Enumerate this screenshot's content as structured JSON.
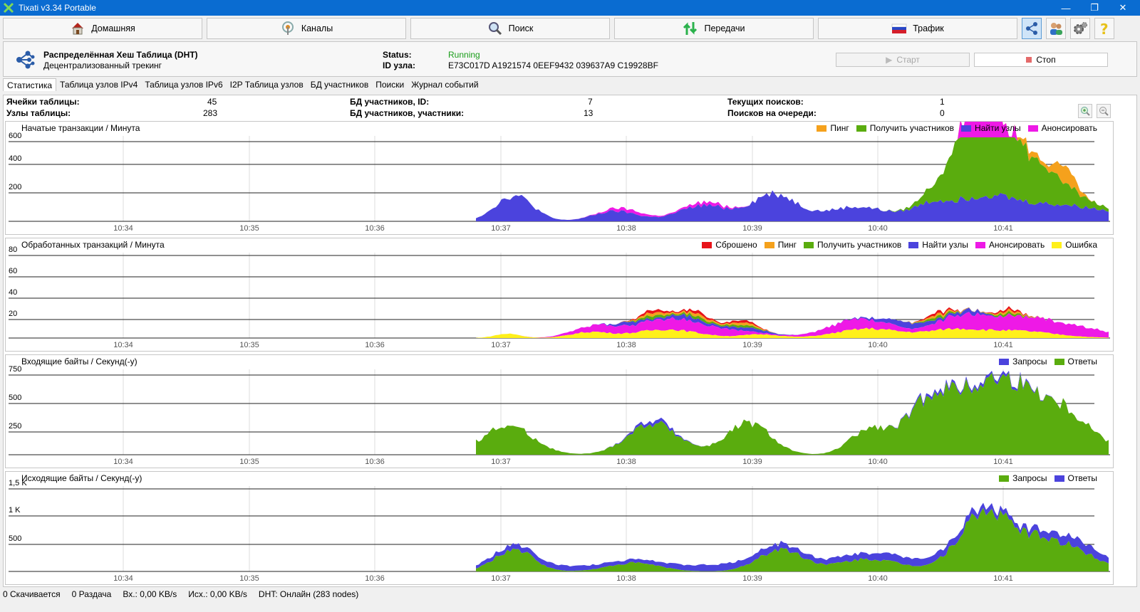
{
  "window": {
    "title": "Tixati v3.34 Portable"
  },
  "main_tabs": [
    {
      "label": "Домашняя",
      "icon": "home-icon"
    },
    {
      "label": "Каналы",
      "icon": "channels-icon"
    },
    {
      "label": "Поиск",
      "icon": "search-icon"
    },
    {
      "label": "Передачи",
      "icon": "transfers-icon"
    },
    {
      "label": "Трафик",
      "icon": "traffic-icon"
    }
  ],
  "dht": {
    "title": "Распределённая Хеш Таблица (DHT)",
    "subtitle": "Децентрализованный трекинг",
    "status_label": "Status:",
    "status_value": "Running",
    "id_label": "ID узла:",
    "id_value": "E73C017D A1921574 0EEF9432 039637A9 C19928BF",
    "start_label": "Старт",
    "stop_label": "Стоп",
    "status_color": "#1a9d1a"
  },
  "sub_tabs": [
    "Статистика",
    "Таблица узлов IPv4",
    "Таблица узлов IPv6",
    "I2P Таблица узлов",
    "БД участников",
    "Поиски",
    "Журнал событий"
  ],
  "stats": {
    "cells_label": "Ячейки таблицы:",
    "cells_value": "45",
    "nodes_label": "Узлы таблицы:",
    "nodes_value": "283",
    "db_id_label": "БД участников, ID:",
    "db_id_value": "7",
    "db_peers_label": "БД участников, участники:",
    "db_peers_value": "13",
    "cur_search_label": "Текущих поисков:",
    "cur_search_value": "1",
    "queue_label": "Поисков на очереди:",
    "queue_value": "0"
  },
  "x_ticks": [
    "10:34",
    "10:35",
    "10:36",
    "10:37",
    "10:38",
    "10:39",
    "10:40",
    "10:41"
  ],
  "chart_data": [
    {
      "type": "area",
      "title": "Начатые транзакции / Минута",
      "y_ticks": [
        "600",
        "400",
        "200"
      ],
      "ylim": [
        0,
        650
      ],
      "series": [
        {
          "name": "Пинг",
          "color": "#f5a11c"
        },
        {
          "name": "Получить участников",
          "color": "#5aac0e"
        },
        {
          "name": "Найти узлы",
          "color": "#4b43dd"
        },
        {
          "name": "Анонсировать",
          "color": "#ee19e6"
        }
      ]
    },
    {
      "type": "area",
      "title": "Обработанных транзакций / Минута",
      "y_ticks": [
        "80",
        "60",
        "40",
        "20"
      ],
      "ylim": [
        0,
        80
      ],
      "series": [
        {
          "name": "Сброшено",
          "color": "#e8141a"
        },
        {
          "name": "Пинг",
          "color": "#f5a11c"
        },
        {
          "name": "Получить участников",
          "color": "#5aac0e"
        },
        {
          "name": "Найти узлы",
          "color": "#4b43dd"
        },
        {
          "name": "Анонсировать",
          "color": "#ee19e6"
        },
        {
          "name": "Ошибка",
          "color": "#fff01a"
        }
      ]
    },
    {
      "type": "area",
      "title": "Входящие байты / Секунд(-у)",
      "y_ticks": [
        "750",
        "500",
        "250"
      ],
      "ylim": [
        0,
        750
      ],
      "series": [
        {
          "name": "Запросы",
          "color": "#4b43dd"
        },
        {
          "name": "Ответы",
          "color": "#5aac0e"
        }
      ]
    },
    {
      "type": "area",
      "title": "Исходящие байты / Секунд(-у)",
      "y_ticks": [
        "1,5 K",
        "1 K",
        "500"
      ],
      "ylim": [
        0,
        1500
      ],
      "series": [
        {
          "name": "Запросы",
          "color": "#5aac0e"
        },
        {
          "name": "Ответы",
          "color": "#4b43dd"
        }
      ]
    }
  ],
  "status_bar": {
    "downloading": "0 Скачивается",
    "seeding": "0 Раздача",
    "in": "Вх.: 0,00 KB/s",
    "out": "Исх.: 0,00 KB/s",
    "dht": "DHT: Онлайн (283 nodes)"
  }
}
